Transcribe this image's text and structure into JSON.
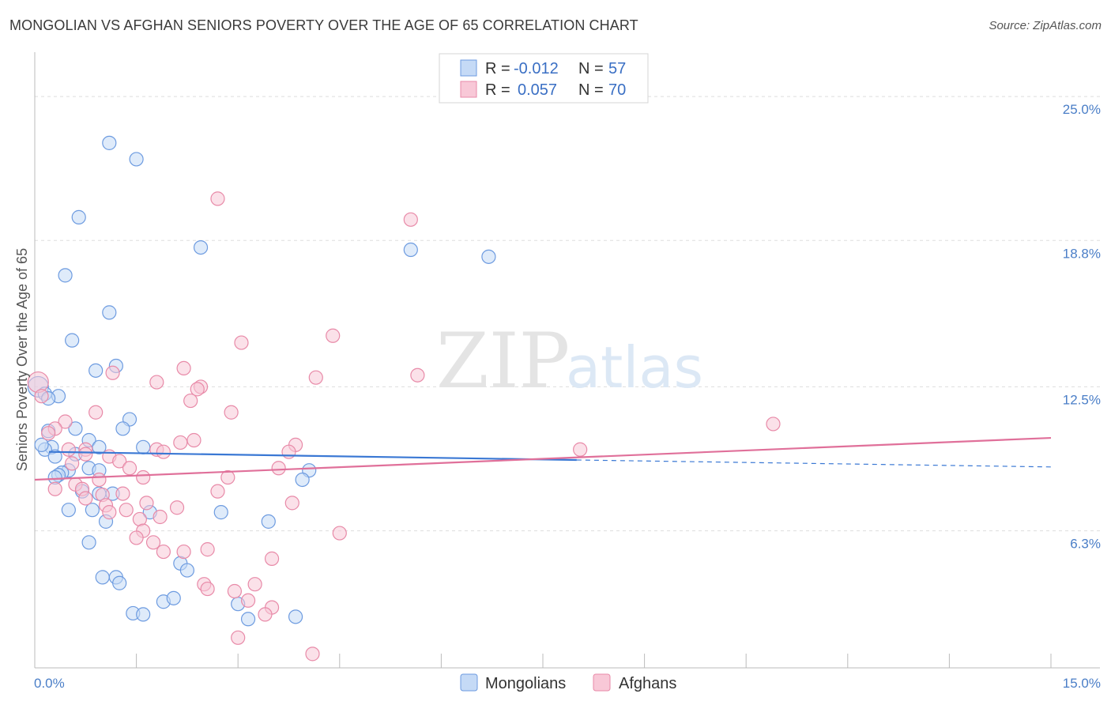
{
  "title": "MONGOLIAN VS AFGHAN SENIORS POVERTY OVER THE AGE OF 65 CORRELATION CHART",
  "source": "Source: ZipAtlas.com",
  "watermark": {
    "zip": "ZIP",
    "atlas": "atlas"
  },
  "chart_data": {
    "type": "scatter",
    "xlabel": "",
    "ylabel": "Seniors Poverty Over the Age of 65",
    "xlim": [
      0,
      15
    ],
    "ylim": [
      0.4,
      26.5
    ],
    "x_tick_labels": {
      "min": "0.0%",
      "max": "15.0%"
    },
    "y_ticks": [
      {
        "value": 6.3,
        "label": "6.3%"
      },
      {
        "value": 12.5,
        "label": "12.5%"
      },
      {
        "value": 18.8,
        "label": "18.8%"
      },
      {
        "value": 25.0,
        "label": "25.0%"
      }
    ],
    "legend": {
      "position": "top-center",
      "rows": [
        {
          "r_label": "R =",
          "r_value": "-0.012",
          "n_label": "N =",
          "n_value": "57"
        },
        {
          "r_label": "R =",
          "r_value": "0.057",
          "n_label": "N =",
          "n_value": "70"
        }
      ]
    },
    "bottom_legend": [
      "Mongolians",
      "Afghans"
    ],
    "series": [
      {
        "name": "Mongolians",
        "color": "#6d9be0",
        "fill": "#c5daf6",
        "trend": {
          "x": [
            0.0,
            8.0
          ],
          "y": [
            9.7,
            9.35
          ],
          "dashed_to": [
            15.0,
            9.05
          ],
          "color": "#3a78d4"
        },
        "points": [
          [
            1.1,
            23.0
          ],
          [
            1.5,
            22.3
          ],
          [
            0.65,
            19.8
          ],
          [
            2.45,
            18.5
          ],
          [
            5.55,
            18.4
          ],
          [
            6.7,
            18.1
          ],
          [
            0.45,
            17.3
          ],
          [
            1.1,
            15.7
          ],
          [
            0.55,
            14.5
          ],
          [
            0.9,
            13.2
          ],
          [
            1.2,
            13.4
          ],
          [
            0.05,
            12.5
          ],
          [
            0.15,
            12.2
          ],
          [
            0.35,
            12.1
          ],
          [
            1.4,
            11.1
          ],
          [
            0.6,
            10.7
          ],
          [
            1.3,
            10.7
          ],
          [
            0.2,
            10.6
          ],
          [
            0.8,
            10.2
          ],
          [
            0.95,
            9.9
          ],
          [
            0.25,
            9.9
          ],
          [
            1.6,
            9.9
          ],
          [
            0.15,
            9.8
          ],
          [
            0.6,
            9.6
          ],
          [
            0.3,
            9.5
          ],
          [
            0.8,
            9.0
          ],
          [
            0.5,
            8.9
          ],
          [
            0.95,
            8.9
          ],
          [
            4.05,
            8.9
          ],
          [
            0.4,
            8.8
          ],
          [
            0.35,
            8.7
          ],
          [
            0.3,
            8.6
          ],
          [
            3.95,
            8.5
          ],
          [
            0.7,
            8.0
          ],
          [
            0.95,
            7.9
          ],
          [
            1.15,
            7.9
          ],
          [
            0.5,
            7.2
          ],
          [
            0.85,
            7.2
          ],
          [
            1.7,
            7.1
          ],
          [
            2.75,
            7.1
          ],
          [
            1.05,
            6.7
          ],
          [
            3.45,
            6.7
          ],
          [
            0.8,
            5.8
          ],
          [
            2.15,
            4.9
          ],
          [
            2.25,
            4.6
          ],
          [
            1.0,
            4.3
          ],
          [
            1.2,
            4.3
          ],
          [
            1.25,
            4.05
          ],
          [
            1.9,
            3.25
          ],
          [
            2.05,
            3.4
          ],
          [
            1.45,
            2.75
          ],
          [
            1.6,
            2.7
          ],
          [
            3.0,
            3.15
          ],
          [
            3.15,
            2.5
          ],
          [
            3.85,
            2.6
          ],
          [
            0.1,
            10.0
          ],
          [
            0.2,
            12.0
          ]
        ]
      },
      {
        "name": "Afghans",
        "color": "#e88aa8",
        "fill": "#f8c8d7",
        "trend": {
          "x": [
            0.0,
            15.0
          ],
          "y": [
            8.5,
            10.3
          ],
          "color": "#e0709a"
        },
        "points": [
          [
            0.05,
            12.7
          ],
          [
            2.7,
            20.6
          ],
          [
            5.55,
            19.7
          ],
          [
            4.4,
            14.7
          ],
          [
            3.05,
            14.4
          ],
          [
            2.2,
            13.3
          ],
          [
            1.15,
            13.1
          ],
          [
            4.15,
            12.9
          ],
          [
            5.65,
            13.0
          ],
          [
            1.8,
            12.7
          ],
          [
            2.45,
            12.5
          ],
          [
            2.4,
            12.4
          ],
          [
            2.3,
            11.9
          ],
          [
            0.9,
            11.4
          ],
          [
            2.9,
            11.4
          ],
          [
            0.45,
            11.0
          ],
          [
            10.9,
            10.9
          ],
          [
            0.3,
            10.7
          ],
          [
            0.2,
            10.5
          ],
          [
            2.35,
            10.2
          ],
          [
            2.15,
            10.1
          ],
          [
            3.85,
            10.0
          ],
          [
            0.5,
            9.8
          ],
          [
            0.75,
            9.8
          ],
          [
            1.8,
            9.8
          ],
          [
            1.9,
            9.7
          ],
          [
            3.75,
            9.7
          ],
          [
            8.05,
            9.8
          ],
          [
            1.1,
            9.5
          ],
          [
            1.25,
            9.3
          ],
          [
            0.75,
            9.6
          ],
          [
            0.55,
            9.2
          ],
          [
            1.4,
            9.0
          ],
          [
            3.6,
            9.0
          ],
          [
            2.85,
            8.6
          ],
          [
            0.95,
            8.5
          ],
          [
            0.6,
            8.3
          ],
          [
            0.7,
            8.1
          ],
          [
            0.3,
            8.1
          ],
          [
            2.7,
            8.0
          ],
          [
            1.3,
            7.9
          ],
          [
            1.0,
            7.85
          ],
          [
            0.75,
            7.7
          ],
          [
            1.65,
            7.5
          ],
          [
            1.05,
            7.4
          ],
          [
            3.8,
            7.5
          ],
          [
            2.1,
            7.3
          ],
          [
            1.35,
            7.2
          ],
          [
            1.1,
            7.1
          ],
          [
            1.85,
            6.9
          ],
          [
            1.55,
            6.8
          ],
          [
            1.6,
            6.3
          ],
          [
            4.5,
            6.2
          ],
          [
            1.5,
            6.0
          ],
          [
            1.75,
            5.8
          ],
          [
            1.9,
            5.4
          ],
          [
            2.2,
            5.4
          ],
          [
            2.55,
            5.5
          ],
          [
            3.5,
            5.1
          ],
          [
            2.5,
            4.0
          ],
          [
            3.25,
            4.0
          ],
          [
            2.55,
            3.8
          ],
          [
            2.95,
            3.7
          ],
          [
            3.15,
            3.3
          ],
          [
            3.5,
            3.0
          ],
          [
            3.4,
            2.7
          ],
          [
            3.0,
            1.7
          ],
          [
            4.1,
            1.0
          ],
          [
            0.1,
            12.1
          ],
          [
            1.6,
            8.6
          ]
        ]
      }
    ]
  }
}
